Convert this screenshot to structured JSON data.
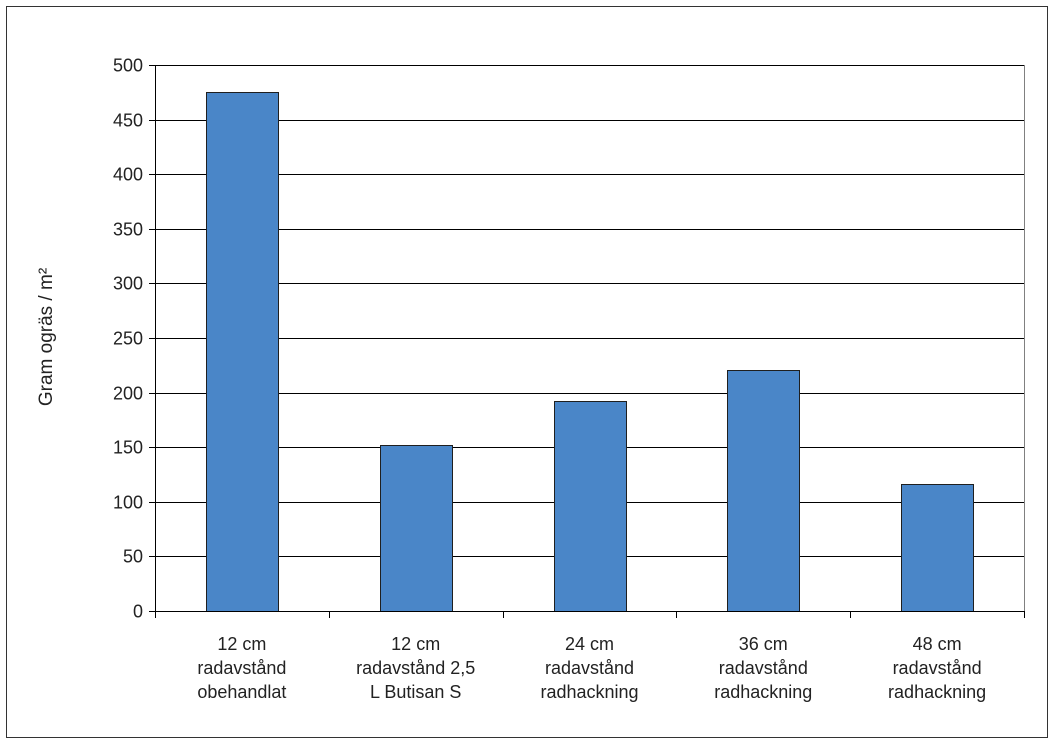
{
  "chart_data": {
    "type": "bar",
    "title": "",
    "xlabel": "",
    "ylabel": "Gram ogräs /  m²",
    "ylim": [
      0,
      500
    ],
    "yticks": [
      0,
      50,
      100,
      150,
      200,
      250,
      300,
      350,
      400,
      450,
      500
    ],
    "grid": true,
    "legend": "none",
    "categories": [
      [
        "12 cm",
        "radavstånd",
        "obehandlat"
      ],
      [
        "12 cm",
        "radavstånd 2,5",
        "L Butisan S"
      ],
      [
        "24 cm",
        "radavstånd",
        "radhackning"
      ],
      [
        "36 cm",
        "radavstånd",
        "radhackning"
      ],
      [
        "48 cm",
        "radavstånd",
        "radhackning"
      ]
    ],
    "values": [
      475,
      152,
      192,
      221,
      116
    ],
    "colors": {
      "bar_fill": "#4a86c8",
      "bar_stroke": "#1f1f1f",
      "grid": "#000000",
      "axis": "#000000"
    }
  }
}
